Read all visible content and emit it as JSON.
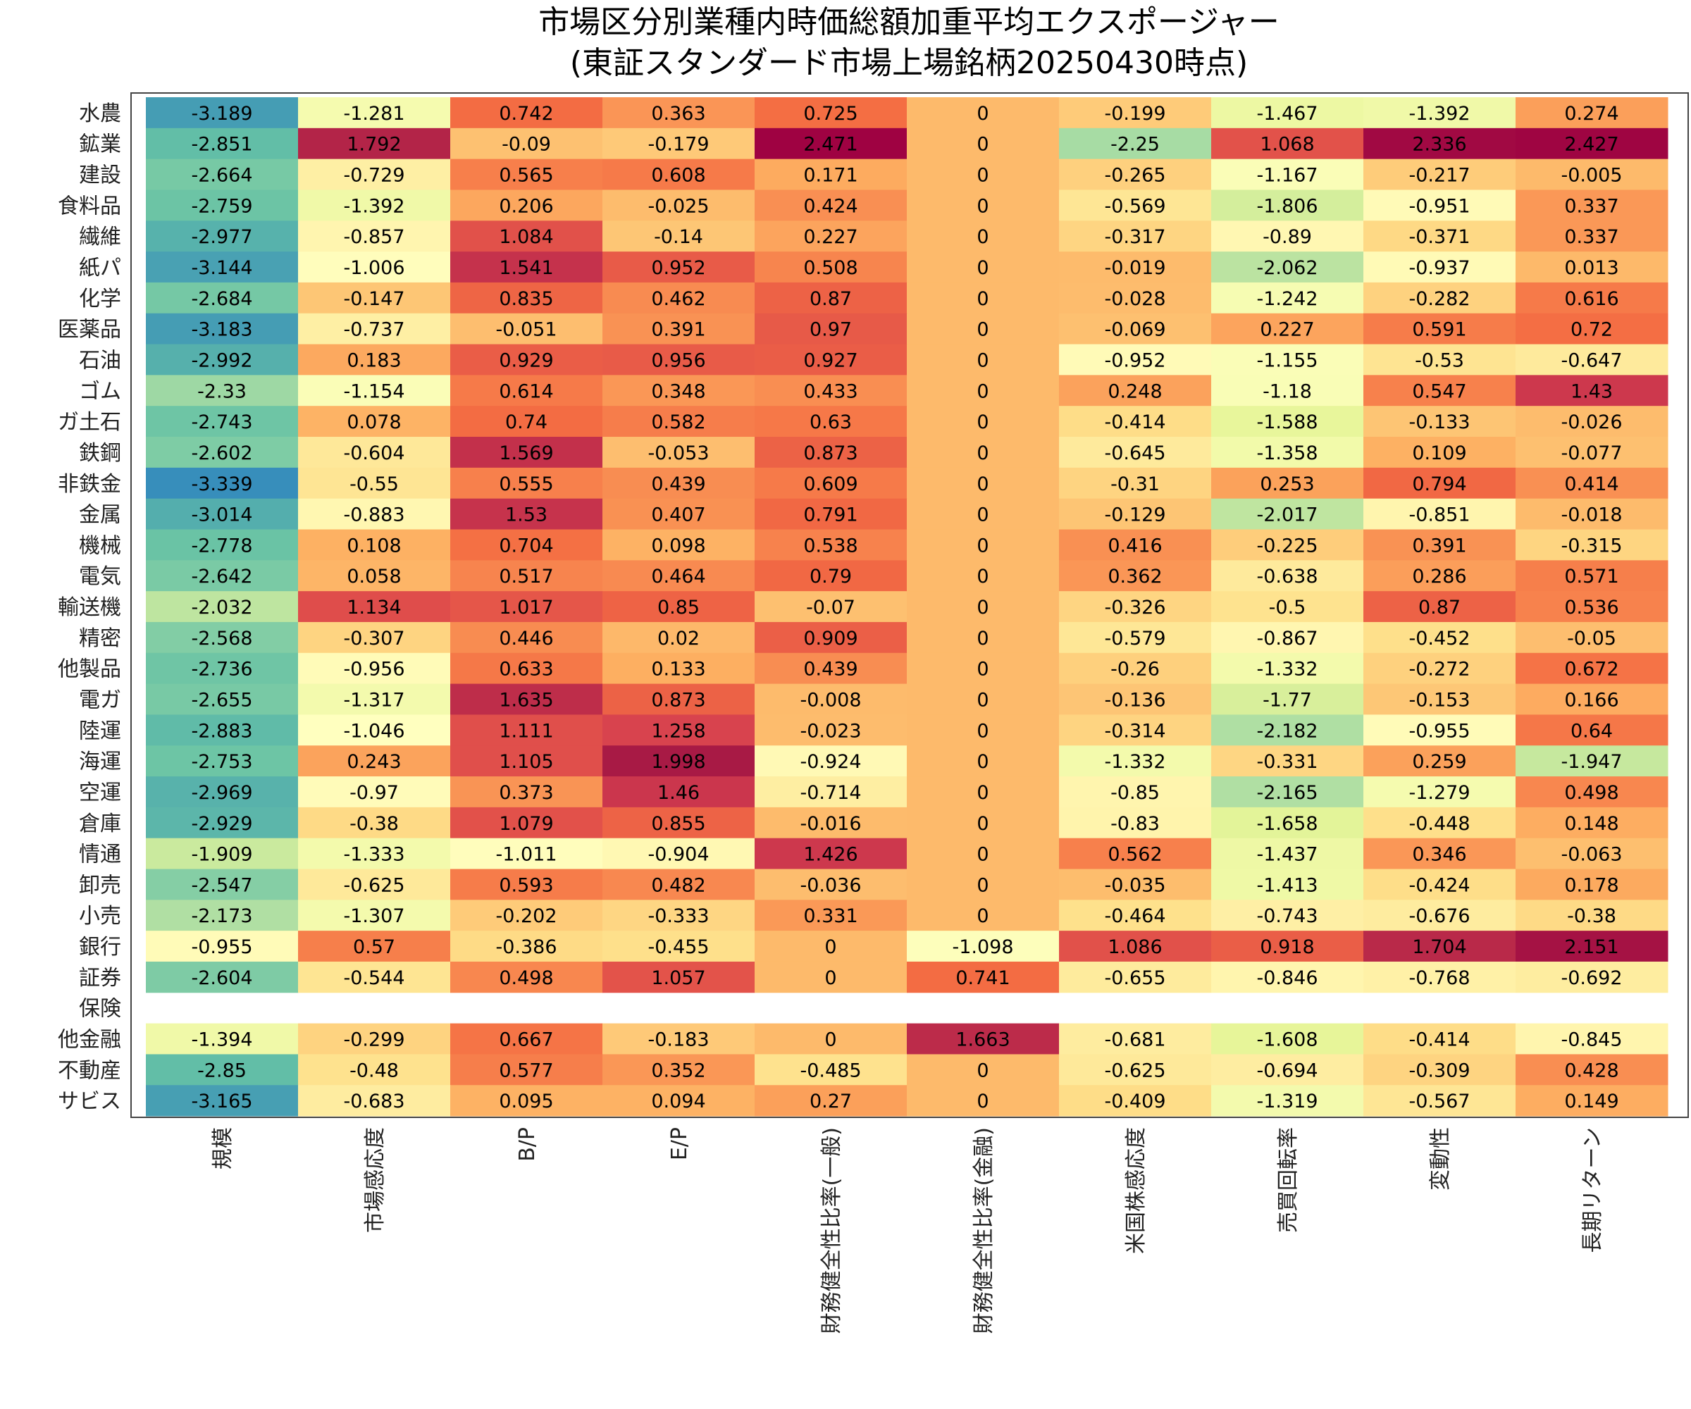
{
  "chart_data": {
    "type": "heatmap",
    "title": [
      "市場区分別業種内時価総額加重平均エクスポージャー",
      "(東証スタンダード市場上場銘柄20250430時点)"
    ],
    "xlabel": "",
    "ylabel": "",
    "columns": [
      "規模",
      "市場感応度",
      "B/P",
      "E/P",
      "財務健全性比率(一般)",
      "財務健全性比率(金融)",
      "米国株感応度",
      "売買回転率",
      "変動性",
      "長期リターン"
    ],
    "rows": [
      "水農",
      "鉱業",
      "建設",
      "食料品",
      "繊維",
      "紙パ",
      "化学",
      "医薬品",
      "石油",
      "ゴム",
      "ガ土石",
      "鉄鋼",
      "非鉄金",
      "金属",
      "機械",
      "電気",
      "輸送機",
      "精密",
      "他製品",
      "電ガ",
      "陸運",
      "海運",
      "空運",
      "倉庫",
      "情通",
      "卸売",
      "小売",
      "銀行",
      "証券",
      "保険",
      "他金融",
      "不動産",
      "サビス"
    ],
    "values": [
      [
        "-3.189",
        "-1.281",
        "0.742",
        "0.363",
        "0.725",
        "0",
        "-0.199",
        "-1.467",
        "-1.392",
        "0.274"
      ],
      [
        "-2.851",
        "1.792",
        "-0.09",
        "-0.179",
        "2.471",
        "0",
        "-2.25",
        "1.068",
        "2.336",
        "2.427"
      ],
      [
        "-2.664",
        "-0.729",
        "0.565",
        "0.608",
        "0.171",
        "0",
        "-0.265",
        "-1.167",
        "-0.217",
        "-0.005"
      ],
      [
        "-2.759",
        "-1.392",
        "0.206",
        "-0.025",
        "0.424",
        "0",
        "-0.569",
        "-1.806",
        "-0.951",
        "0.337"
      ],
      [
        "-2.977",
        "-0.857",
        "1.084",
        "-0.14",
        "0.227",
        "0",
        "-0.317",
        "-0.89",
        "-0.371",
        "0.337"
      ],
      [
        "-3.144",
        "-1.006",
        "1.541",
        "0.952",
        "0.508",
        "0",
        "-0.019",
        "-2.062",
        "-0.937",
        "0.013"
      ],
      [
        "-2.684",
        "-0.147",
        "0.835",
        "0.462",
        "0.87",
        "0",
        "-0.028",
        "-1.242",
        "-0.282",
        "0.616"
      ],
      [
        "-3.183",
        "-0.737",
        "-0.051",
        "0.391",
        "0.97",
        "0",
        "-0.069",
        "0.227",
        "0.591",
        "0.72"
      ],
      [
        "-2.992",
        "0.183",
        "0.929",
        "0.956",
        "0.927",
        "0",
        "-0.952",
        "-1.155",
        "-0.53",
        "-0.647"
      ],
      [
        "-2.33",
        "-1.154",
        "0.614",
        "0.348",
        "0.433",
        "0",
        "0.248",
        "-1.18",
        "0.547",
        "1.43"
      ],
      [
        "-2.743",
        "0.078",
        "0.74",
        "0.582",
        "0.63",
        "0",
        "-0.414",
        "-1.588",
        "-0.133",
        "-0.026"
      ],
      [
        "-2.602",
        "-0.604",
        "1.569",
        "-0.053",
        "0.873",
        "0",
        "-0.645",
        "-1.358",
        "0.109",
        "-0.077"
      ],
      [
        "-3.339",
        "-0.55",
        "0.555",
        "0.439",
        "0.609",
        "0",
        "-0.31",
        "0.253",
        "0.794",
        "0.414"
      ],
      [
        "-3.014",
        "-0.883",
        "1.53",
        "0.407",
        "0.791",
        "0",
        "-0.129",
        "-2.017",
        "-0.851",
        "-0.018"
      ],
      [
        "-2.778",
        "0.108",
        "0.704",
        "0.098",
        "0.538",
        "0",
        "0.416",
        "-0.225",
        "0.391",
        "-0.315"
      ],
      [
        "-2.642",
        "0.058",
        "0.517",
        "0.464",
        "0.79",
        "0",
        "0.362",
        "-0.638",
        "0.286",
        "0.571"
      ],
      [
        "-2.032",
        "1.134",
        "1.017",
        "0.85",
        "-0.07",
        "0",
        "-0.326",
        "-0.5",
        "0.87",
        "0.536"
      ],
      [
        "-2.568",
        "-0.307",
        "0.446",
        "0.02",
        "0.909",
        "0",
        "-0.579",
        "-0.867",
        "-0.452",
        "-0.05"
      ],
      [
        "-2.736",
        "-0.956",
        "0.633",
        "0.133",
        "0.439",
        "0",
        "-0.26",
        "-1.332",
        "-0.272",
        "0.672"
      ],
      [
        "-2.655",
        "-1.317",
        "1.635",
        "0.873",
        "-0.008",
        "0",
        "-0.136",
        "-1.77",
        "-0.153",
        "0.166"
      ],
      [
        "-2.883",
        "-1.046",
        "1.111",
        "1.258",
        "-0.023",
        "0",
        "-0.314",
        "-2.182",
        "-0.955",
        "0.64"
      ],
      [
        "-2.753",
        "0.243",
        "1.105",
        "1.998",
        "-0.924",
        "0",
        "-1.332",
        "-0.331",
        "0.259",
        "-1.947"
      ],
      [
        "-2.969",
        "-0.97",
        "0.373",
        "1.46",
        "-0.714",
        "0",
        "-0.85",
        "-2.165",
        "-1.279",
        "0.498"
      ],
      [
        "-2.929",
        "-0.38",
        "1.079",
        "0.855",
        "-0.016",
        "0",
        "-0.83",
        "-1.658",
        "-0.448",
        "0.148"
      ],
      [
        "-1.909",
        "-1.333",
        "-1.011",
        "-0.904",
        "1.426",
        "0",
        "0.562",
        "-1.437",
        "0.346",
        "-0.063"
      ],
      [
        "-2.547",
        "-0.625",
        "0.593",
        "0.482",
        "-0.036",
        "0",
        "-0.035",
        "-1.413",
        "-0.424",
        "0.178"
      ],
      [
        "-2.173",
        "-1.307",
        "-0.202",
        "-0.333",
        "0.331",
        "0",
        "-0.464",
        "-0.743",
        "-0.676",
        "-0.38"
      ],
      [
        "-0.955",
        "0.57",
        "-0.386",
        "-0.455",
        "0",
        "-1.098",
        "1.086",
        "0.918",
        "1.704",
        "2.151"
      ],
      [
        "-2.604",
        "-0.544",
        "0.498",
        "1.057",
        "0",
        "0.741",
        "-0.655",
        "-0.846",
        "-0.768",
        "-0.692"
      ],
      [
        null,
        null,
        null,
        null,
        null,
        null,
        null,
        null,
        null,
        null
      ],
      [
        "-1.394",
        "-0.299",
        "0.667",
        "-0.183",
        "0",
        "1.663",
        "-0.681",
        "-1.608",
        "-0.414",
        "-0.845"
      ],
      [
        "-2.85",
        "-0.48",
        "0.577",
        "0.352",
        "-0.485",
        "0",
        "-0.625",
        "-0.694",
        "-0.309",
        "0.428"
      ],
      [
        "-3.165",
        "-0.683",
        "0.095",
        "0.094",
        "0.27",
        "0",
        "-0.409",
        "-1.319",
        "-0.567",
        "0.149"
      ]
    ],
    "colormap": "Spectral_r",
    "vmin": -3.4,
    "vmax": 2.5,
    "grid": false,
    "legend": "none"
  }
}
